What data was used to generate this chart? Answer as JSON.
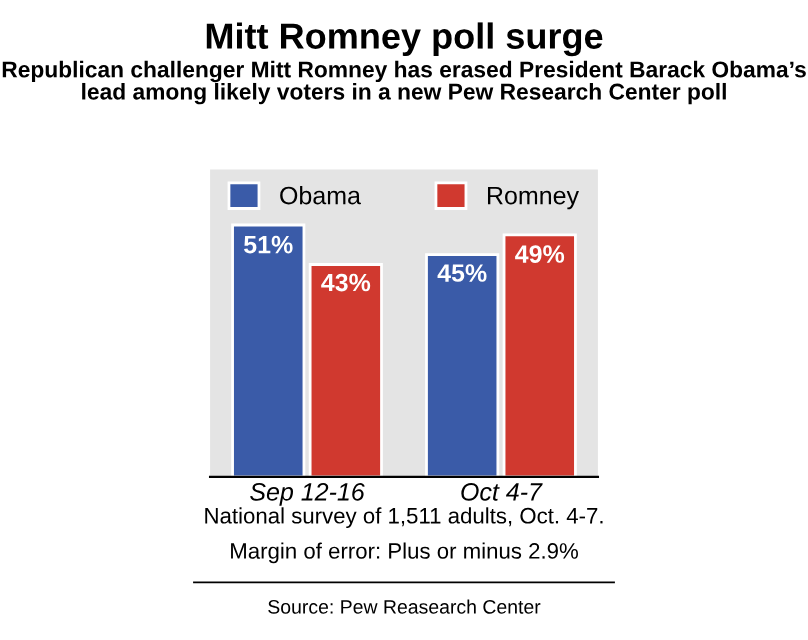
{
  "chart_data": {
    "type": "bar",
    "title": "Mitt Romney poll surge",
    "subtitle": "Republican challenger Mitt Romney has erased President Barack Obama’s lead among likely voters in a new Pew Research Center poll",
    "categories": [
      "Sep 12-16",
      "Oct 4-7"
    ],
    "series": [
      {
        "name": "Obama",
        "color": "#3a5ba8",
        "values": [
          51,
          45
        ],
        "value_labels": [
          "51%",
          "45%"
        ]
      },
      {
        "name": "Romney",
        "color": "#d0392f",
        "values": [
          43,
          49
        ],
        "value_labels": [
          "43%",
          "49%"
        ]
      }
    ],
    "legend": "top",
    "annotations": [
      "National survey of 1,511 adults, Oct. 4-7.",
      "Margin of error: Plus or minus 2.9%",
      "Source: Pew Reasearch Center"
    ]
  }
}
